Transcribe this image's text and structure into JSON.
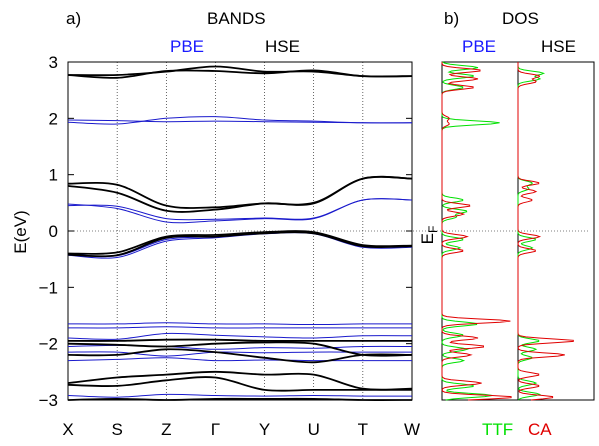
{
  "header": {
    "panel_a": "a)",
    "bands_title": "BANDS",
    "panel_b": "b)",
    "dos_title": "DOS",
    "pbe": "PBE",
    "hse": "HSE",
    "dos_pbe": "PBE",
    "dos_hse": "HSE"
  },
  "colors": {
    "pbe": "#1a1acc",
    "hse": "#000000",
    "ttf": "#00e000",
    "ca": "#e00000",
    "accent_pbe_text": "#1a1aff"
  },
  "chart_data": [
    {
      "type": "line",
      "name": "bands",
      "ylabel": "E(eV)",
      "ylim": [
        -3,
        3
      ],
      "yticks": [
        "−3",
        "−2",
        "−1",
        "0",
        "1",
        "2",
        "3"
      ],
      "ytick_values": [
        -3,
        -2,
        -1,
        0,
        1,
        2,
        3
      ],
      "kpoints": [
        "X",
        "S",
        "Z",
        "Γ",
        "Y",
        "U",
        "T",
        "W"
      ],
      "series": [
        {
          "group": "PBE",
          "values": [
            1.93,
            1.9,
            2.0,
            2.03,
            1.97,
            1.95,
            1.92,
            1.92
          ]
        },
        {
          "group": "PBE",
          "values": [
            1.97,
            1.96,
            1.94,
            1.95,
            1.94,
            1.93,
            1.92,
            1.92
          ]
        },
        {
          "group": "PBE",
          "values": [
            0.45,
            0.44,
            0.22,
            0.21,
            0.23,
            0.23,
            0.55,
            0.55
          ]
        },
        {
          "group": "PBE",
          "values": [
            0.48,
            0.4,
            0.16,
            0.18,
            0.22,
            0.22,
            0.55,
            0.55
          ]
        },
        {
          "group": "PBE",
          "values": [
            -0.4,
            -0.44,
            -0.15,
            -0.1,
            -0.03,
            -0.03,
            -0.27,
            -0.27
          ]
        },
        {
          "group": "PBE",
          "values": [
            -0.43,
            -0.47,
            -0.18,
            -0.12,
            -0.05,
            -0.05,
            -0.29,
            -0.29
          ]
        },
        {
          "group": "PBE",
          "values": [
            -1.65,
            -1.65,
            -1.63,
            -1.65,
            -1.65,
            -1.66,
            -1.65,
            -1.65
          ]
        },
        {
          "group": "PBE",
          "values": [
            -1.72,
            -1.72,
            -1.7,
            -1.72,
            -1.72,
            -1.72,
            -1.72,
            -1.72
          ]
        },
        {
          "group": "PBE",
          "values": [
            -1.9,
            -1.92,
            -1.82,
            -1.85,
            -1.88,
            -1.9,
            -1.86,
            -1.86
          ]
        },
        {
          "group": "PBE",
          "values": [
            -2.05,
            -2.03,
            -2.05,
            -2.1,
            -2.07,
            -2.08,
            -2.05,
            -2.05
          ]
        },
        {
          "group": "PBE",
          "values": [
            -2.15,
            -2.15,
            -2.22,
            -2.15,
            -2.16,
            -2.15,
            -2.15,
            -2.15
          ]
        },
        {
          "group": "PBE",
          "values": [
            -2.3,
            -2.28,
            -2.25,
            -2.3,
            -2.29,
            -2.3,
            -2.3,
            -2.3
          ]
        },
        {
          "group": "PBE",
          "values": [
            -2.92,
            -2.95,
            -2.9,
            -2.92,
            -2.93,
            -2.92,
            -2.93,
            -2.93
          ]
        },
        {
          "group": "HSE",
          "values": [
            2.77,
            2.77,
            2.83,
            2.92,
            2.83,
            2.83,
            2.75,
            2.75
          ]
        },
        {
          "group": "HSE",
          "values": [
            2.77,
            2.72,
            2.84,
            2.84,
            2.8,
            2.85,
            2.75,
            2.75
          ]
        },
        {
          "group": "HSE",
          "values": [
            0.84,
            0.82,
            0.45,
            0.42,
            0.49,
            0.5,
            0.93,
            0.93
          ]
        },
        {
          "group": "HSE",
          "values": [
            0.8,
            0.68,
            0.36,
            0.38,
            0.49,
            0.49,
            0.93,
            0.93
          ]
        },
        {
          "group": "HSE",
          "values": [
            -0.4,
            -0.38,
            -0.1,
            -0.07,
            -0.02,
            -0.02,
            -0.25,
            -0.26
          ]
        },
        {
          "group": "HSE",
          "values": [
            -0.42,
            -0.43,
            -0.12,
            -0.1,
            -0.04,
            -0.04,
            -0.27,
            -0.27
          ]
        },
        {
          "group": "HSE",
          "values": [
            -1.95,
            -1.95,
            -1.93,
            -1.93,
            -1.95,
            -1.95,
            -1.95,
            -1.95
          ]
        },
        {
          "group": "HSE",
          "values": [
            -2.0,
            -2.02,
            -2.05,
            -2.0,
            -1.98,
            -2.0,
            -2.2,
            -2.2
          ]
        },
        {
          "group": "HSE",
          "values": [
            -2.2,
            -2.2,
            -2.1,
            -2.15,
            -2.25,
            -2.33,
            -2.2,
            -2.2
          ]
        },
        {
          "group": "HSE",
          "values": [
            -2.7,
            -2.6,
            -2.55,
            -2.5,
            -2.55,
            -2.55,
            -2.8,
            -2.8
          ]
        },
        {
          "group": "HSE",
          "values": [
            -2.73,
            -2.75,
            -2.65,
            -2.6,
            -2.82,
            -2.82,
            -2.82,
            -2.82
          ]
        },
        {
          "group": "HSE",
          "values": [
            -3.0,
            -2.98,
            -3.0,
            -2.98,
            -2.98,
            -2.98,
            -3.0,
            -3.0
          ]
        }
      ]
    },
    {
      "type": "area",
      "name": "dos",
      "y_label": "E",
      "y_label_sub": "F",
      "legend": [
        {
          "label": "TTF",
          "color": "#00e000"
        },
        {
          "label": "CA",
          "color": "#e00000"
        }
      ],
      "panels": [
        "PBE",
        "HSE"
      ],
      "ylim": [
        -3,
        3
      ],
      "peaks": {
        "PBE": {
          "TTF": [
            [
              2.9,
              0.5
            ],
            [
              2.75,
              0.45
            ],
            [
              2.55,
              0.3
            ],
            [
              1.92,
              0.8
            ],
            [
              0.55,
              0.3
            ],
            [
              0.35,
              0.35
            ],
            [
              0.25,
              0.2
            ],
            [
              -0.15,
              0.3
            ],
            [
              -0.3,
              0.25
            ],
            [
              -1.65,
              0.5
            ],
            [
              -1.85,
              0.3
            ],
            [
              -2.1,
              0.35
            ],
            [
              -2.3,
              0.3
            ],
            [
              -2.75,
              0.45
            ],
            [
              -2.92,
              0.7
            ]
          ],
          "CA": [
            [
              2.85,
              0.55
            ],
            [
              2.7,
              0.5
            ],
            [
              2.55,
              0.45
            ],
            [
              2.0,
              0.1
            ],
            [
              1.9,
              0.1
            ],
            [
              0.45,
              0.4
            ],
            [
              0.3,
              0.3
            ],
            [
              -0.1,
              0.35
            ],
            [
              -0.35,
              0.3
            ],
            [
              -1.6,
              0.95
            ],
            [
              -1.9,
              0.5
            ],
            [
              -2.05,
              0.6
            ],
            [
              -2.2,
              0.4
            ],
            [
              -2.7,
              0.55
            ],
            [
              -2.95,
              1.0
            ]
          ]
        },
        "HSE": {
          "TTF": [
            [
              2.8,
              0.35
            ],
            [
              2.7,
              0.3
            ],
            [
              0.85,
              0.2
            ],
            [
              0.75,
              0.15
            ],
            [
              -0.15,
              0.25
            ],
            [
              -0.3,
              0.2
            ],
            [
              -1.95,
              0.3
            ],
            [
              -2.1,
              0.25
            ],
            [
              -2.25,
              0.2
            ],
            [
              -2.7,
              0.25
            ],
            [
              -2.9,
              0.3
            ]
          ],
          "CA": [
            [
              2.75,
              0.3
            ],
            [
              2.65,
              0.25
            ],
            [
              0.85,
              0.3
            ],
            [
              0.7,
              0.25
            ],
            [
              0.55,
              0.2
            ],
            [
              -0.1,
              0.3
            ],
            [
              -0.35,
              0.25
            ],
            [
              -1.95,
              0.8
            ],
            [
              -2.2,
              0.65
            ],
            [
              -2.55,
              0.3
            ],
            [
              -2.75,
              0.3
            ],
            [
              -2.95,
              0.5
            ]
          ]
        }
      }
    }
  ]
}
